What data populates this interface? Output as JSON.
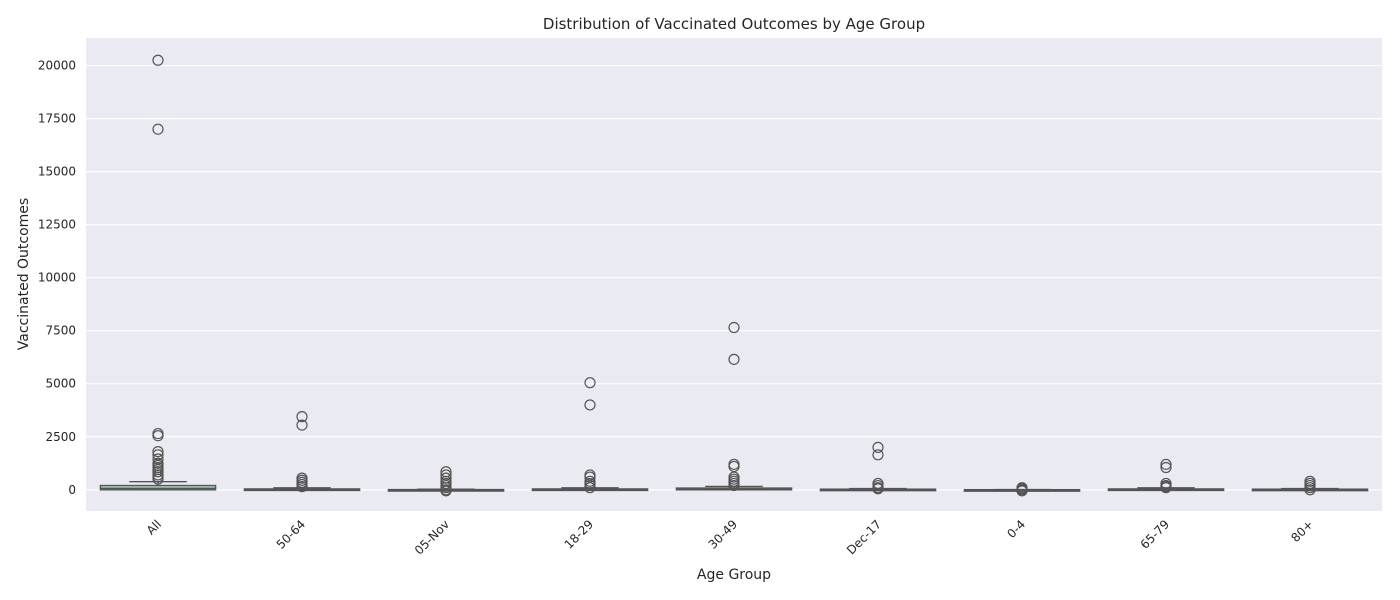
{
  "chart_data": {
    "type": "box",
    "title": "Distribution of Vaccinated Outcomes by Age Group",
    "xlabel": "Age Group",
    "ylabel": "Vaccinated Outcomes",
    "ylim": [
      -1000,
      21300
    ],
    "yticks": [
      0,
      2500,
      5000,
      7500,
      10000,
      12500,
      15000,
      17500,
      20000
    ],
    "grid": true,
    "categories": [
      "All",
      "50-64",
      "05-Nov",
      "18-29",
      "30-49",
      "Dec-17",
      "0-4",
      "65-79",
      "80+"
    ],
    "boxes": [
      {
        "q1": 0,
        "median": 70,
        "q3": 200,
        "whisker_low": 0,
        "whisker_high": 380,
        "outliers": [
          20250,
          17000,
          2650,
          2550,
          1800,
          1650,
          1450,
          1250,
          1150,
          1050,
          950,
          850,
          700,
          600,
          500
        ]
      },
      {
        "q1": 0,
        "median": 10,
        "q3": 40,
        "whisker_low": 0,
        "whisker_high": 90,
        "outliers": [
          3450,
          3050,
          550,
          450,
          350,
          250,
          150
        ]
      },
      {
        "q1": -10,
        "median": 0,
        "q3": 10,
        "whisker_low": -30,
        "whisker_high": 30,
        "outliers": [
          850,
          700,
          550,
          400,
          300,
          200,
          100,
          0,
          -50
        ]
      },
      {
        "q1": 0,
        "median": 10,
        "q3": 40,
        "whisker_low": 0,
        "whisker_high": 90,
        "outliers": [
          5050,
          4000,
          700,
          600,
          400,
          300,
          200,
          100
        ]
      },
      {
        "q1": 0,
        "median": 30,
        "q3": 80,
        "whisker_low": 0,
        "whisker_high": 160,
        "outliers": [
          7650,
          6150,
          1200,
          1100,
          600,
          500,
          400,
          300,
          200
        ]
      },
      {
        "q1": 0,
        "median": 5,
        "q3": 30,
        "whisker_low": 0,
        "whisker_high": 60,
        "outliers": [
          2000,
          1650,
          300,
          200,
          100,
          50
        ]
      },
      {
        "q1": -5,
        "median": 0,
        "q3": 5,
        "whisker_low": -10,
        "whisker_high": 10,
        "outliers": [
          100,
          50,
          0,
          -50
        ]
      },
      {
        "q1": 0,
        "median": 10,
        "q3": 40,
        "whisker_low": 0,
        "whisker_high": 90,
        "outliers": [
          1200,
          1050,
          300,
          200,
          150,
          100
        ]
      },
      {
        "q1": 0,
        "median": 5,
        "q3": 30,
        "whisker_low": 0,
        "whisker_high": 60,
        "outliers": [
          400,
          300,
          200,
          100,
          0
        ]
      }
    ],
    "colors": {
      "plot_bg": "#eaeaf2",
      "grid": "#ffffff",
      "box_fill": "#a8d8c8",
      "box_line": "#555555",
      "outlier_edge": "#555555"
    }
  }
}
